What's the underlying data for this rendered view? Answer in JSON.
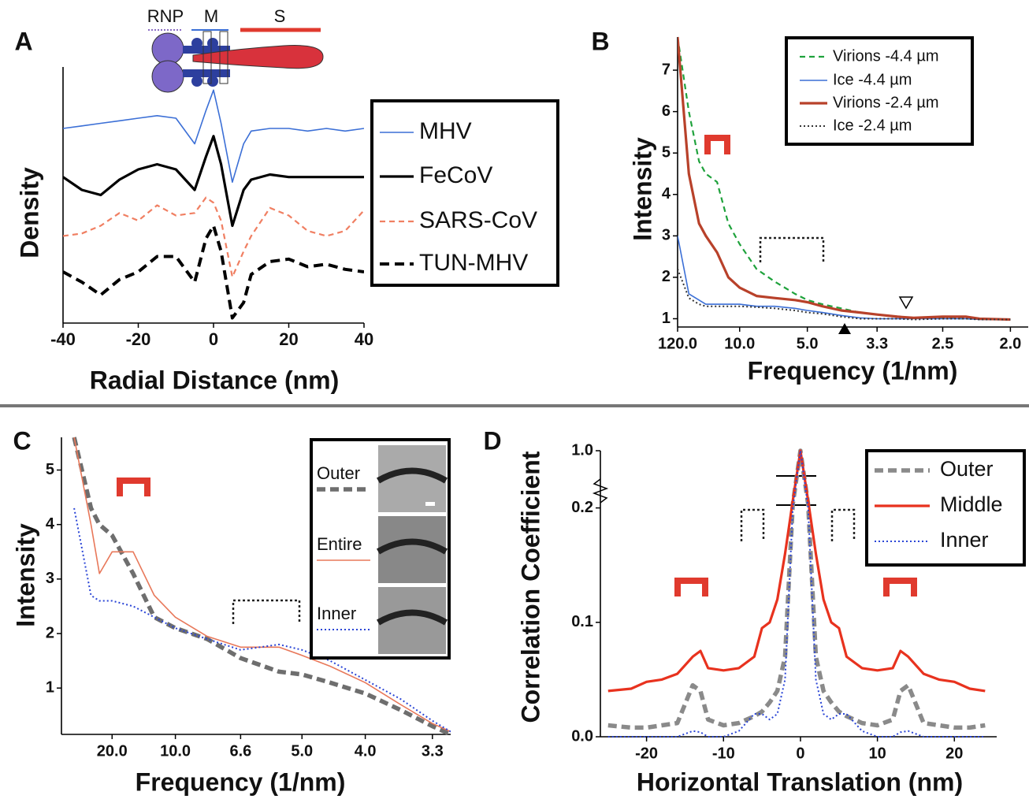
{
  "chart_data": [
    {
      "type": "line",
      "panel": "A",
      "xlabel": "Radial Distance (nm)",
      "ylabel": "Density",
      "annotations": [
        "RNP",
        "M",
        "S"
      ],
      "x": [
        -40,
        -35,
        -30,
        -25,
        -20,
        -15,
        -10,
        -5,
        -2,
        0,
        2,
        5,
        8,
        10,
        15,
        20,
        25,
        30,
        35,
        40
      ],
      "xlim": [
        -40,
        40
      ],
      "xticks": [
        -40,
        -20,
        0,
        20,
        40
      ],
      "ylim": [
        0,
        10
      ],
      "legend": "right",
      "series": [
        {
          "name": "MHV",
          "color": "#3b6fd6",
          "style": "thin",
          "values": [
            7.6,
            7.7,
            7.8,
            7.9,
            8.0,
            8.1,
            8.0,
            7.0,
            8.3,
            9.1,
            7.8,
            5.5,
            7.0,
            7.5,
            7.6,
            7.6,
            7.5,
            7.6,
            7.5,
            7.6
          ]
        },
        {
          "name": "FeCoV",
          "color": "#000000",
          "style": "thick",
          "values": [
            5.7,
            5.2,
            5.0,
            5.6,
            6.0,
            6.2,
            6.0,
            5.2,
            6.5,
            7.3,
            6.2,
            3.8,
            5.2,
            5.6,
            5.8,
            5.7,
            5.7,
            5.7,
            5.7,
            5.7
          ]
        },
        {
          "name": "SARS-CoV",
          "color": "#f07f62",
          "style": "dashed",
          "values": [
            3.4,
            3.5,
            3.8,
            4.3,
            4.0,
            4.6,
            4.2,
            4.3,
            4.9,
            4.7,
            4.0,
            1.8,
            2.8,
            3.4,
            4.5,
            4.2,
            3.6,
            3.4,
            3.6,
            4.4
          ]
        },
        {
          "name": "TUN-MHV",
          "color": "#000000",
          "style": "thick-dashed",
          "values": [
            2.0,
            1.6,
            1.1,
            1.7,
            2.0,
            2.6,
            2.6,
            1.6,
            3.3,
            3.8,
            2.8,
            0.2,
            0.8,
            1.9,
            2.4,
            2.5,
            2.2,
            2.3,
            2.1,
            2.0
          ]
        }
      ]
    },
    {
      "type": "line",
      "panel": "B",
      "xlabel": "Frequency (1/nm)",
      "ylabel": "Intensity",
      "xscale": "reciprocal",
      "x": [
        120,
        40,
        25,
        20,
        15,
        12,
        10,
        8,
        6.6,
        5.5,
        5,
        4.5,
        4,
        3.6,
        3.3,
        3,
        2.8,
        2.5,
        2.3,
        2.2,
        2
      ],
      "xlim": [
        120,
        1.9
      ],
      "xticks": [
        {
          "value": 120,
          "label": "120.0"
        },
        {
          "value": 10,
          "label": "10.0"
        },
        {
          "value": 5,
          "label": "5.0"
        },
        3.3,
        2.5,
        {
          "value": 2,
          "label": "2.0"
        }
      ],
      "ylim": [
        0.8,
        7.8
      ],
      "yticks": [
        1,
        2,
        3,
        4,
        5,
        6,
        7
      ],
      "legend": "upper right",
      "series": [
        {
          "name": "Virions -4.4 µm",
          "color": "#1fa23c",
          "style": "dashed",
          "values": [
            7.8,
            6.0,
            4.8,
            4.5,
            4.3,
            3.3,
            2.8,
            2.2,
            1.9,
            1.6,
            1.45,
            1.35,
            1.25,
            1.15,
            1.1,
            1.05,
            1.02,
            1.02,
            1.0,
            1.0,
            0.98
          ]
        },
        {
          "name": "Ice -4.4 µm",
          "color": "#3b6fd6",
          "style": "thin",
          "values": [
            3.0,
            1.6,
            1.45,
            1.35,
            1.35,
            1.35,
            1.35,
            1.3,
            1.3,
            1.25,
            1.2,
            1.15,
            1.08,
            1.02,
            1.0,
            1.0,
            1.0,
            1.0,
            1.0,
            0.98,
            0.98
          ]
        },
        {
          "name": "Virions -2.4 µm",
          "color": "#b8412a",
          "style": "thick",
          "values": [
            7.8,
            4.5,
            3.3,
            3.0,
            2.6,
            2.0,
            1.75,
            1.55,
            1.5,
            1.45,
            1.4,
            1.3,
            1.2,
            1.15,
            1.1,
            1.05,
            1.02,
            1.05,
            1.05,
            1.0,
            0.98
          ]
        },
        {
          "name": "Ice -2.4 µm",
          "color": "#333333",
          "style": "dotted",
          "values": [
            2.2,
            1.5,
            1.35,
            1.3,
            1.3,
            1.3,
            1.3,
            1.28,
            1.25,
            1.2,
            1.15,
            1.12,
            1.05,
            1.0,
            1.0,
            1.0,
            0.98,
            1.0,
            1.0,
            0.98,
            0.98
          ]
        }
      ]
    },
    {
      "type": "line",
      "panel": "C",
      "xlabel": "Frequency (1/nm)",
      "ylabel": "Intensity",
      "xscale": "reciprocal",
      "x": [
        50,
        30,
        25,
        20,
        15,
        12,
        10,
        8,
        6.6,
        5.5,
        5,
        4.5,
        4,
        3.6,
        3.3,
        3.15
      ],
      "xlim": [
        100,
        3.15
      ],
      "xticks": [
        {
          "value": 20,
          "label": "20.0"
        },
        {
          "value": 10,
          "label": "10.0"
        },
        6.6,
        {
          "value": 5,
          "label": "5.0"
        },
        {
          "value": 4,
          "label": "4.0"
        },
        3.3
      ],
      "ylim": [
        0.15,
        5.6
      ],
      "yticks": [
        1,
        2,
        3,
        4,
        5
      ],
      "legend": "upper right",
      "series": [
        {
          "name": "Outer",
          "color": "#6e6e6e",
          "style": "heavy-dashed",
          "values": [
            5.6,
            4.3,
            4.0,
            3.8,
            3.1,
            2.3,
            2.1,
            1.9,
            1.55,
            1.3,
            1.25,
            1.1,
            0.9,
            0.6,
            0.3,
            0.15
          ]
        },
        {
          "name": "Entire",
          "color": "#e8785a",
          "style": "thin",
          "values": [
            5.6,
            4.0,
            3.1,
            3.5,
            3.5,
            2.7,
            2.3,
            1.95,
            1.75,
            1.75,
            1.6,
            1.4,
            1.1,
            0.7,
            0.35,
            0.2
          ]
        },
        {
          "name": "Inner",
          "color": "#2a45d6",
          "style": "dotted",
          "values": [
            4.3,
            2.7,
            2.6,
            2.6,
            2.5,
            2.3,
            2.1,
            1.9,
            1.7,
            1.8,
            1.7,
            1.5,
            1.15,
            0.8,
            0.4,
            0.2
          ]
        }
      ]
    },
    {
      "type": "line",
      "panel": "D",
      "xlabel": "Horizontal Translation (nm)",
      "ylabel": "Correlation Coefficient",
      "yscale": "broken",
      "x": [
        -25,
        -22,
        -20,
        -18,
        -16,
        -14,
        -13,
        -12,
        -10,
        -8,
        -6,
        -5,
        -4,
        -3,
        -2,
        -1,
        0,
        1,
        2,
        3,
        4,
        5,
        6,
        8,
        10,
        12,
        13,
        14,
        16,
        18,
        20,
        22,
        24
      ],
      "xlim": [
        -26,
        25.5
      ],
      "xticks": [
        -20,
        -10,
        0,
        10,
        20
      ],
      "ylim": [
        0,
        1
      ],
      "yticks": [
        {
          "value": 0,
          "label": "0.0"
        },
        0.1,
        0.2,
        {
          "value": 1,
          "label": "1.0"
        }
      ],
      "legend": "upper right",
      "series": [
        {
          "name": "Outer",
          "color": "#8a8a8a",
          "style": "heavy-dashed",
          "values": [
            0.01,
            0.008,
            0.008,
            0.01,
            0.012,
            0.045,
            0.04,
            0.015,
            0.01,
            0.012,
            0.018,
            0.022,
            0.03,
            0.04,
            0.07,
            0.25,
            1.0,
            0.25,
            0.07,
            0.04,
            0.03,
            0.022,
            0.018,
            0.012,
            0.01,
            0.015,
            0.04,
            0.045,
            0.012,
            0.01,
            0.008,
            0.008,
            0.01
          ]
        },
        {
          "name": "Middle",
          "color": "#e8321e",
          "style": "thick",
          "values": [
            0.04,
            0.042,
            0.048,
            0.05,
            0.055,
            0.07,
            0.075,
            0.06,
            0.058,
            0.06,
            0.07,
            0.095,
            0.1,
            0.12,
            0.16,
            0.3,
            1.0,
            0.3,
            0.16,
            0.12,
            0.1,
            0.095,
            0.07,
            0.06,
            0.058,
            0.06,
            0.075,
            0.07,
            0.055,
            0.05,
            0.048,
            0.042,
            0.04
          ]
        },
        {
          "name": "Inner",
          "color": "#2a45d6",
          "style": "dotted",
          "values": [
            0,
            0,
            0,
            0,
            0,
            0.005,
            0.004,
            0,
            0,
            0.005,
            0.02,
            0.02,
            0.015,
            0.02,
            0.05,
            0.2,
            1.0,
            0.2,
            0.05,
            0.02,
            0.015,
            0.02,
            0.02,
            0.005,
            0,
            0,
            0.004,
            0.005,
            0,
            0,
            0,
            0,
            0
          ]
        }
      ]
    }
  ]
}
